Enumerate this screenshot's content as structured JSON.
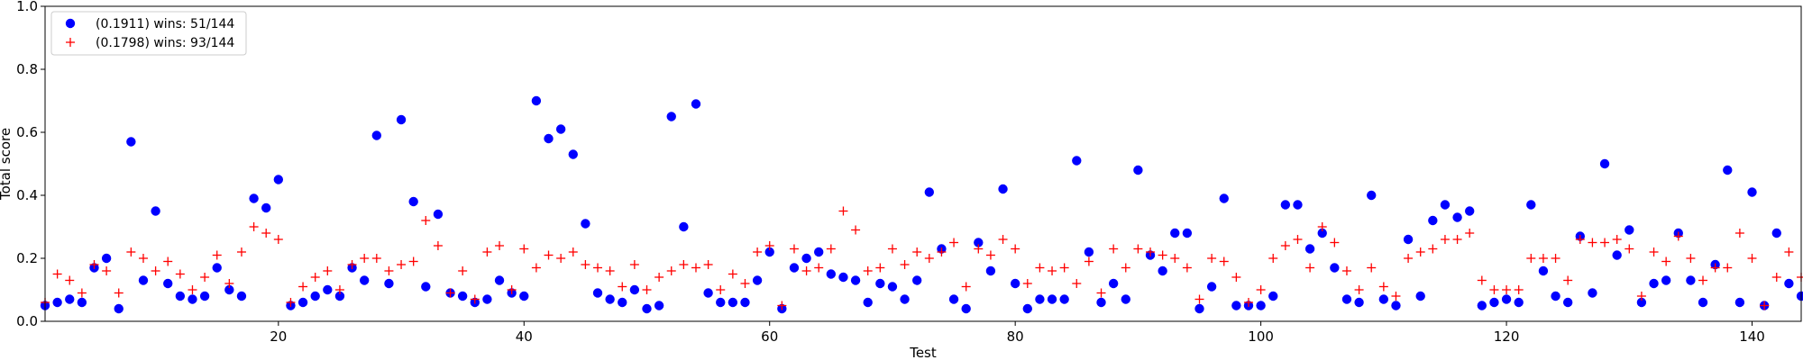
{
  "chart_data": {
    "type": "scatter",
    "title": "",
    "xlabel": "Test",
    "ylabel": "Total score",
    "xlim": [
      1,
      144
    ],
    "ylim": [
      0,
      1
    ],
    "xticks": [
      20,
      40,
      60,
      80,
      100,
      120,
      140
    ],
    "yticks": [
      0.0,
      0.2,
      0.4,
      0.6,
      0.8,
      1.0
    ],
    "legend_position": "top-left",
    "grid": false,
    "series": [
      {
        "name": "(0.1911) wins: 51/144",
        "marker": "circle",
        "color": "#0000ff",
        "x": [
          1,
          2,
          3,
          4,
          5,
          6,
          7,
          8,
          9,
          10,
          11,
          12,
          13,
          14,
          15,
          16,
          17,
          18,
          19,
          20,
          21,
          22,
          23,
          24,
          25,
          26,
          27,
          28,
          29,
          30,
          31,
          32,
          33,
          34,
          35,
          36,
          37,
          38,
          39,
          40,
          41,
          42,
          43,
          44,
          45,
          46,
          47,
          48,
          49,
          50,
          51,
          52,
          53,
          54,
          55,
          56,
          57,
          58,
          59,
          60,
          61,
          62,
          63,
          64,
          65,
          66,
          67,
          68,
          69,
          70,
          71,
          72,
          73,
          74,
          75,
          76,
          77,
          78,
          79,
          80,
          81,
          82,
          83,
          84,
          85,
          86,
          87,
          88,
          89,
          90,
          91,
          92,
          93,
          94,
          95,
          96,
          97,
          98,
          99,
          100,
          101,
          102,
          103,
          104,
          105,
          106,
          107,
          108,
          109,
          110,
          111,
          112,
          113,
          114,
          115,
          116,
          117,
          118,
          119,
          120,
          121,
          122,
          123,
          124,
          125,
          126,
          127,
          128,
          129,
          130,
          131,
          132,
          133,
          134,
          135,
          136,
          137,
          138,
          139,
          140,
          141,
          142,
          143,
          144
        ],
        "y": [
          0.05,
          0.06,
          0.07,
          0.06,
          0.17,
          0.2,
          0.04,
          0.57,
          0.13,
          0.35,
          0.12,
          0.08,
          0.07,
          0.08,
          0.17,
          0.1,
          0.08,
          0.39,
          0.36,
          0.45,
          0.05,
          0.06,
          0.08,
          0.1,
          0.08,
          0.17,
          0.13,
          0.59,
          0.12,
          0.64,
          0.38,
          0.11,
          0.34,
          0.09,
          0.08,
          0.06,
          0.07,
          0.13,
          0.09,
          0.08,
          0.7,
          0.58,
          0.61,
          0.53,
          0.31,
          0.09,
          0.07,
          0.06,
          0.1,
          0.04,
          0.05,
          0.65,
          0.3,
          0.69,
          0.09,
          0.06,
          0.06,
          0.06,
          0.13,
          0.22,
          0.04,
          0.17,
          0.2,
          0.22,
          0.15,
          0.14,
          0.13,
          0.06,
          0.12,
          0.11,
          0.07,
          0.13,
          0.41,
          0.23,
          0.07,
          0.04,
          0.25,
          0.16,
          0.42,
          0.12,
          0.04,
          0.07,
          0.07,
          0.07,
          0.51,
          0.22,
          0.06,
          0.12,
          0.07,
          0.48,
          0.21,
          0.16,
          0.28,
          0.28,
          0.04,
          0.11,
          0.39,
          0.05,
          0.05,
          0.05,
          0.08,
          0.37,
          0.37,
          0.23,
          0.28,
          0.17,
          0.07,
          0.06,
          0.4,
          0.07,
          0.05,
          0.26,
          0.08,
          0.32,
          0.37,
          0.33,
          0.35,
          0.05,
          0.06,
          0.07,
          0.06,
          0.37,
          0.16,
          0.08,
          0.06,
          0.27,
          0.09,
          0.5,
          0.21,
          0.29,
          0.06,
          0.12,
          0.13,
          0.28,
          0.13,
          0.06,
          0.18,
          0.48,
          0.06,
          0.41,
          0.05,
          0.28,
          0.12,
          0.08
        ]
      },
      {
        "name": "(0.1798) wins: 93/144",
        "marker": "plus",
        "color": "#ff0000",
        "x": [
          1,
          2,
          3,
          4,
          5,
          6,
          7,
          8,
          9,
          10,
          11,
          12,
          13,
          14,
          15,
          16,
          17,
          18,
          19,
          20,
          21,
          22,
          23,
          24,
          25,
          26,
          27,
          28,
          29,
          30,
          31,
          32,
          33,
          34,
          35,
          36,
          37,
          38,
          39,
          40,
          41,
          42,
          43,
          44,
          45,
          46,
          47,
          48,
          49,
          50,
          51,
          52,
          53,
          54,
          55,
          56,
          57,
          58,
          59,
          60,
          61,
          62,
          63,
          64,
          65,
          66,
          67,
          68,
          69,
          70,
          71,
          72,
          73,
          74,
          75,
          76,
          77,
          78,
          79,
          80,
          81,
          82,
          83,
          84,
          85,
          86,
          87,
          88,
          89,
          90,
          91,
          92,
          93,
          94,
          95,
          96,
          97,
          98,
          99,
          100,
          101,
          102,
          103,
          104,
          105,
          106,
          107,
          108,
          109,
          110,
          111,
          112,
          113,
          114,
          115,
          116,
          117,
          118,
          119,
          120,
          121,
          122,
          123,
          124,
          125,
          126,
          127,
          128,
          129,
          130,
          131,
          132,
          133,
          134,
          135,
          136,
          137,
          138,
          139,
          140,
          141,
          142,
          143,
          144
        ],
        "y": [
          0.06,
          0.15,
          0.13,
          0.09,
          0.18,
          0.16,
          0.09,
          0.22,
          0.2,
          0.16,
          0.19,
          0.15,
          0.1,
          0.14,
          0.21,
          0.12,
          0.22,
          0.3,
          0.28,
          0.26,
          0.06,
          0.11,
          0.14,
          0.16,
          0.1,
          0.18,
          0.2,
          0.2,
          0.16,
          0.18,
          0.19,
          0.32,
          0.24,
          0.09,
          0.16,
          0.07,
          0.22,
          0.24,
          0.1,
          0.23,
          0.17,
          0.21,
          0.2,
          0.22,
          0.18,
          0.17,
          0.16,
          0.11,
          0.18,
          0.1,
          0.14,
          0.16,
          0.18,
          0.17,
          0.18,
          0.1,
          0.15,
          0.12,
          0.22,
          0.24,
          0.05,
          0.23,
          0.16,
          0.17,
          0.23,
          0.35,
          0.29,
          0.16,
          0.17,
          0.23,
          0.18,
          0.22,
          0.2,
          0.22,
          0.25,
          0.11,
          0.23,
          0.21,
          0.26,
          0.23,
          0.12,
          0.17,
          0.16,
          0.17,
          0.12,
          0.19,
          0.09,
          0.23,
          0.17,
          0.23,
          0.22,
          0.21,
          0.2,
          0.17,
          0.07,
          0.2,
          0.19,
          0.14,
          0.06,
          0.1,
          0.2,
          0.24,
          0.26,
          0.17,
          0.3,
          0.25,
          0.16,
          0.1,
          0.17,
          0.11,
          0.08,
          0.2,
          0.22,
          0.23,
          0.26,
          0.26,
          0.28,
          0.13,
          0.1,
          0.1,
          0.1,
          0.2,
          0.2,
          0.2,
          0.13,
          0.26,
          0.25,
          0.25,
          0.26,
          0.23,
          0.08,
          0.22,
          0.19,
          0.27,
          0.2,
          0.13,
          0.17,
          0.17,
          0.28,
          0.2,
          0.05,
          0.14,
          0.22,
          0.14
        ]
      }
    ]
  }
}
